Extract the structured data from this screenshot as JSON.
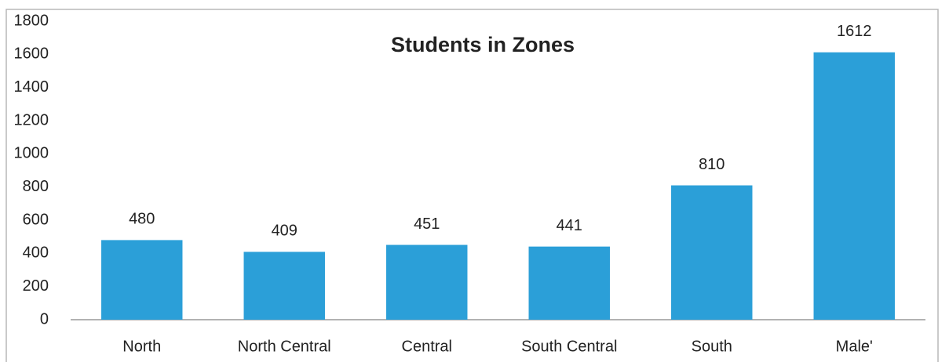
{
  "chart_data": {
    "type": "bar",
    "title": "Students in Zones",
    "categories": [
      "North",
      "North Central",
      "Central",
      "South Central",
      "South",
      "Male'"
    ],
    "values": [
      480,
      409,
      451,
      441,
      810,
      1612
    ],
    "color": "#2b9fd8",
    "ylim": [
      0,
      1800
    ],
    "yticks": [
      0,
      200,
      400,
      600,
      800,
      1000,
      1200,
      1400,
      1600,
      1800
    ],
    "grid": false
  }
}
